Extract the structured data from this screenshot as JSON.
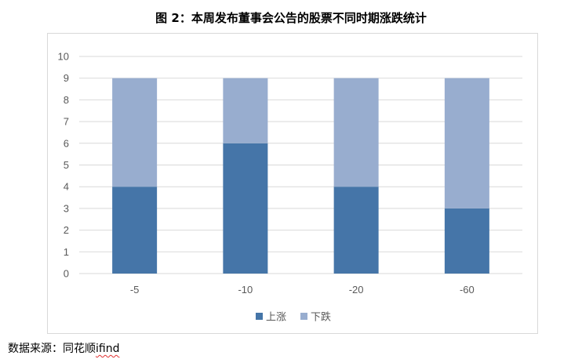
{
  "title": "图 2：本周发布董事会公告的股票不同时期涨跌统计",
  "source": {
    "prefix": "数据来源：同花顺",
    "tool": "ifind"
  },
  "colors": {
    "up": "#4575a8",
    "down": "#98adcf",
    "grid": "#d9d9d9",
    "text": "#595959"
  },
  "chart_data": {
    "type": "bar",
    "stacked": true,
    "title": "图 2：本周发布董事会公告的股票不同时期涨跌统计",
    "categories": [
      "-5",
      "-10",
      "-20",
      "-60"
    ],
    "series": [
      {
        "name": "上涨",
        "values": [
          4,
          6,
          4,
          3
        ]
      },
      {
        "name": "下跌",
        "values": [
          5,
          3,
          5,
          6
        ]
      }
    ],
    "ylim": [
      0,
      10
    ],
    "yticks": [
      0,
      1,
      2,
      3,
      4,
      5,
      6,
      7,
      8,
      9,
      10
    ],
    "grid": true,
    "legend": "bottom"
  }
}
